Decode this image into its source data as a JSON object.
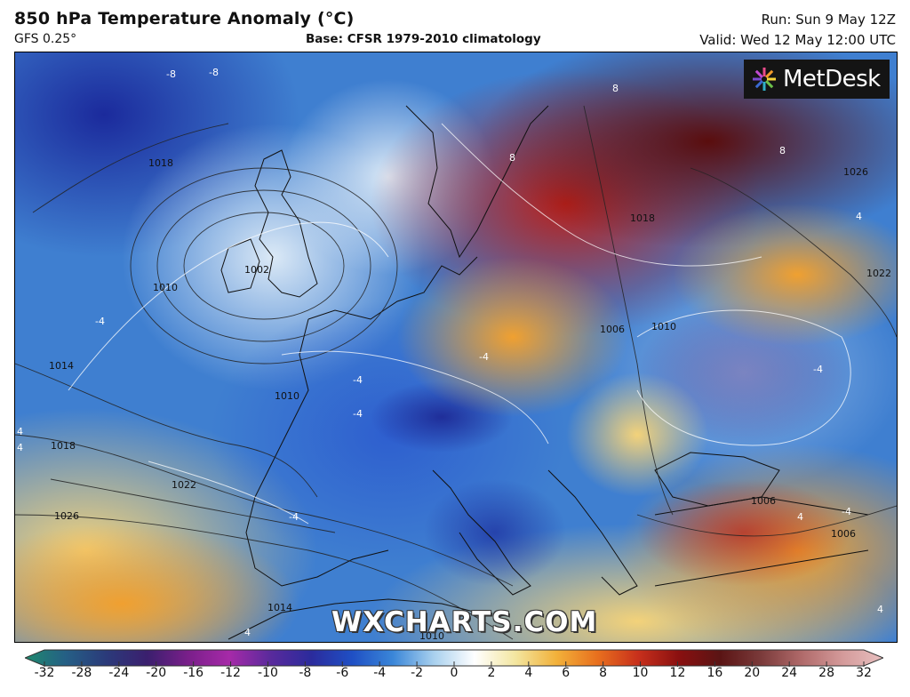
{
  "header": {
    "title": "850 hPa Temperature Anomaly (°C)",
    "model": "GFS 0.25°",
    "base": "Base: CFSR 1979-2010 climatology",
    "run": "Run: Sun 9 May 12Z",
    "valid": "Valid: Wed 12 May 12:00 UTC"
  },
  "map": {
    "logo_text": "MetDesk",
    "logo_icon": "metdesk-star-icon",
    "watermark": "WXCHARTS.COM",
    "contour_labels": {
      "c1018a": "1018",
      "c1010a": "1010",
      "c1002": "1002",
      "c1014a": "1014",
      "c1010b": "1010",
      "c1018b": "1018",
      "c1022a": "1022",
      "c1026a": "1026",
      "c1014b": "1014",
      "c1010c": "1010",
      "c1018c": "1018",
      "c1026b": "1026",
      "c1022b": "1022",
      "c1006a": "1006",
      "c1006b": "1006",
      "c1010d": "1010",
      "c1006c": "1006"
    },
    "anomaly_labels": {
      "m8a": "-8",
      "m8b": "-8",
      "m4a": "-4",
      "m4b": "-4",
      "m4c": "-4",
      "m4d": "-4",
      "m4e": "-4",
      "m4f": "-4",
      "m4g": "-4",
      "p8a": "8",
      "p8b": "8",
      "p8c": "8",
      "p4a": "4",
      "p4b": "4",
      "p4c": "4",
      "p4d": "4",
      "p4e": "4",
      "p4f": "4"
    }
  },
  "colorbar": {
    "labels": [
      "-32",
      "-28",
      "-24",
      "-20",
      "-16",
      "-12",
      "-10",
      "-8",
      "-6",
      "-4",
      "-2",
      "0",
      "2",
      "4",
      "6",
      "8",
      "10",
      "12",
      "16",
      "20",
      "24",
      "28",
      "32"
    ],
    "colors": [
      "#1f8a6e",
      "#255f85",
      "#2b3a7a",
      "#3b1f6e",
      "#7a1f8a",
      "#a62aa8",
      "#5a2a9c",
      "#2b2b9c",
      "#1f4fc4",
      "#3a86d8",
      "#a8d0ee",
      "#ffffff",
      "#f3e6a0",
      "#f2b13a",
      "#e8701e",
      "#c8301c",
      "#8a1010",
      "#5a1414",
      "#7a3a3a",
      "#b06a6a",
      "#d49a9a",
      "#e8c0c0"
    ]
  }
}
